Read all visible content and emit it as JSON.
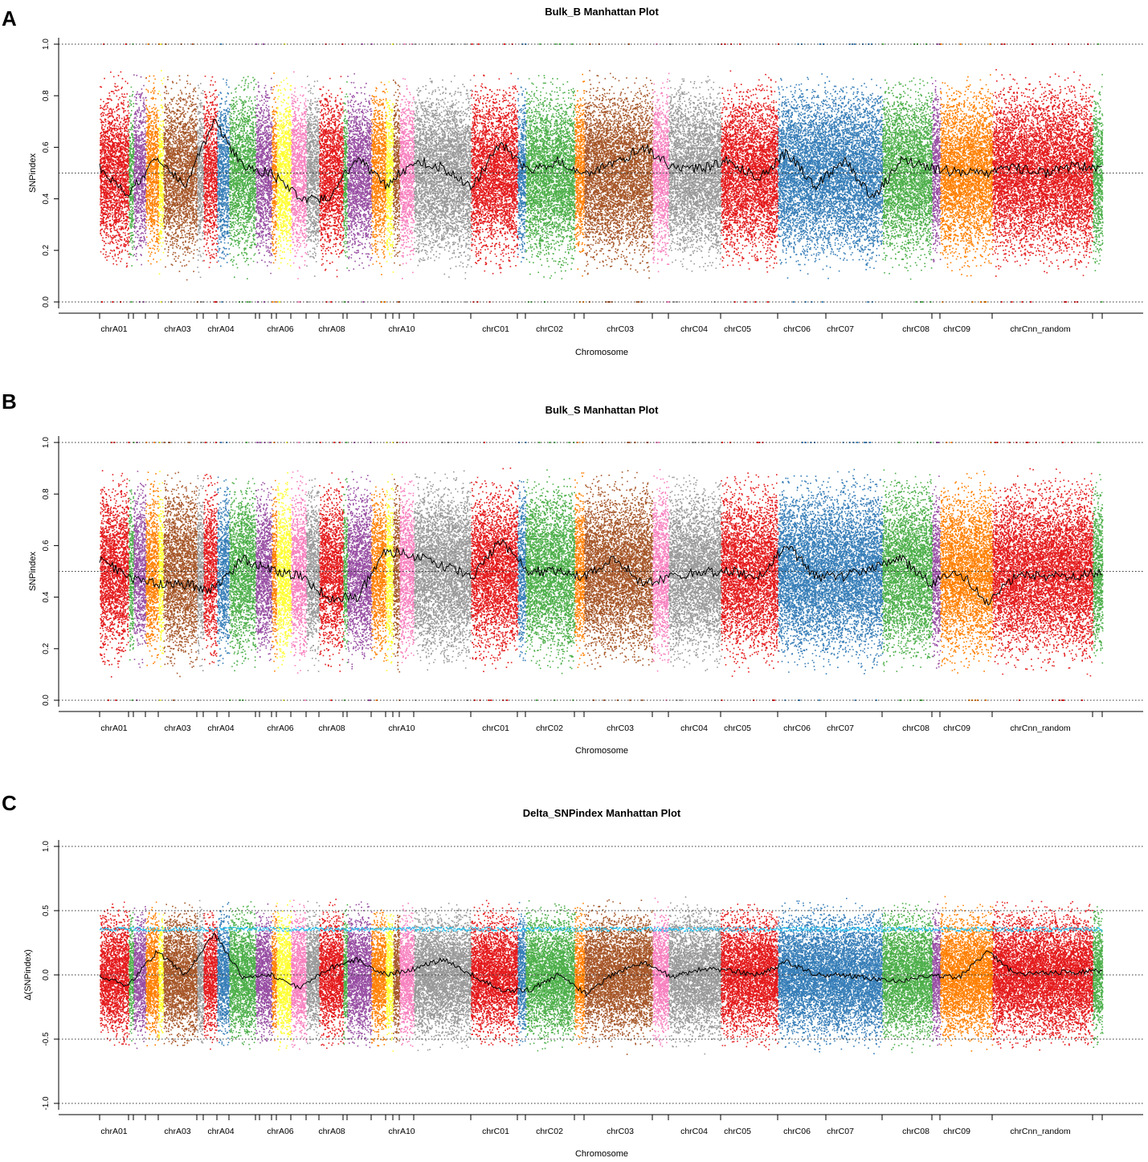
{
  "figure": {
    "panels": [
      "A",
      "B",
      "C"
    ]
  },
  "chart_data": [
    {
      "panel": "A",
      "type": "scatter",
      "title": "Bulk_B Manhattan Plot",
      "xlabel": "Chromosome",
      "ylabel": "SNPindex",
      "ylim": [
        0.0,
        1.0
      ],
      "yticks": [
        "0.0",
        "0.2",
        "0.4",
        "0.6",
        "0.8",
        "1.0"
      ],
      "reference_lines": [
        0.0,
        0.5,
        1.0
      ],
      "chromosome_labels": [
        "chrA01",
        "chrA03",
        "chrA04",
        "chrA06",
        "chrA08",
        "chrA10",
        "chrC01",
        "chrC02",
        "chrC03",
        "chrC04",
        "chrC05",
        "chrC06",
        "chrC07",
        "chrC08",
        "chrC09",
        "chrCnn_random"
      ],
      "sliding_mean_by_chromosome": [
        0.52,
        0.42,
        0.56,
        0.45,
        0.7,
        0.52,
        0.5,
        0.4,
        0.4,
        0.56,
        0.45,
        0.55,
        0.52,
        0.44,
        0.62,
        0.5,
        0.55,
        0.5,
        0.54,
        0.6,
        0.52,
        0.52,
        0.55,
        0.48,
        0.58,
        0.45,
        0.55,
        0.4,
        0.55,
        0.52,
        0.5,
        0.5,
        0.52,
        0.5,
        0.53,
        0.52
      ]
    },
    {
      "panel": "B",
      "type": "scatter",
      "title": "Bulk_S Manhattan Plot",
      "xlabel": "Chromosome",
      "ylabel": "SNPindex",
      "ylim": [
        0.0,
        1.0
      ],
      "yticks": [
        "0.0",
        "0.2",
        "0.4",
        "0.6",
        "0.8",
        "1.0"
      ],
      "reference_lines": [
        0.0,
        0.5,
        1.0
      ],
      "chromosome_labels": [
        "chrA01",
        "chrA03",
        "chrA04",
        "chrA06",
        "chrA08",
        "chrA10",
        "chrC01",
        "chrC02",
        "chrC03",
        "chrC04",
        "chrC05",
        "chrC06",
        "chrC07",
        "chrC08",
        "chrC09",
        "chrCnn_random"
      ],
      "sliding_mean_by_chromosome": [
        0.55,
        0.48,
        0.45,
        0.45,
        0.43,
        0.55,
        0.5,
        0.48,
        0.4,
        0.4,
        0.58,
        0.56,
        0.52,
        0.48,
        0.62,
        0.5,
        0.5,
        0.48,
        0.55,
        0.45,
        0.48,
        0.5,
        0.5,
        0.48,
        0.6,
        0.48,
        0.48,
        0.52,
        0.55,
        0.45,
        0.5,
        0.38,
        0.48,
        0.48,
        0.48,
        0.5
      ]
    },
    {
      "panel": "C",
      "type": "scatter",
      "title": "Delta_SNPindex Manhattan Plot",
      "xlabel": "Chromosome",
      "ylabel": "Δ(SNPindex)",
      "ylim": [
        -1.0,
        1.0
      ],
      "yticks": [
        "-1.0",
        "-0.5",
        "0.0",
        "0.5",
        "1.0"
      ],
      "reference_lines": [
        -1.0,
        -0.5,
        0.0,
        0.5,
        1.0
      ],
      "threshold_value": 0.36,
      "threshold_color": "#1EBFF0",
      "chromosome_labels": [
        "chrA01",
        "chrA03",
        "chrA04",
        "chrA06",
        "chrA08",
        "chrA10",
        "chrC01",
        "chrC02",
        "chrC03",
        "chrC04",
        "chrC05",
        "chrC06",
        "chrC07",
        "chrC08",
        "chrC09",
        "chrCnn_random"
      ],
      "sliding_mean_by_chromosome": [
        -0.02,
        -0.08,
        0.18,
        0.0,
        0.32,
        -0.02,
        0.0,
        -0.1,
        0.05,
        0.12,
        0.0,
        0.05,
        0.12,
        0.0,
        -0.12,
        -0.12,
        0.0,
        -0.15,
        0.02,
        0.1,
        -0.02,
        0.05,
        0.03,
        0.0,
        0.1,
        0.0,
        0.0,
        -0.03,
        -0.05,
        0.0,
        -0.02,
        0.18,
        0.0,
        0.02,
        0.02,
        0.03
      ]
    }
  ],
  "chromosome_colors": [
    "#E41A1C",
    "#4DAF4A",
    "#984EA3",
    "#FF7F00",
    "#FFFF33",
    "#A65628",
    "#999999",
    "#E41A1C",
    "#377EB8",
    "#4DAF4A",
    "#984EA3",
    "#984EA3",
    "#FF7F00",
    "#FFFF33",
    "#F781BF",
    "#999999",
    "#E41A1C",
    "#4DAF4A",
    "#984EA3",
    "#FF7F00",
    "#FFFF33",
    "#A65628",
    "#F781BF",
    "#999999",
    "#E41A1C",
    "#377EB8",
    "#4DAF4A",
    "#FF7F00",
    "#A65628",
    "#F781BF",
    "#999999",
    "#E41A1C",
    "#377EB8",
    "#377EB8",
    "#4DAF4A",
    "#984EA3",
    "#FF7F00"
  ]
}
